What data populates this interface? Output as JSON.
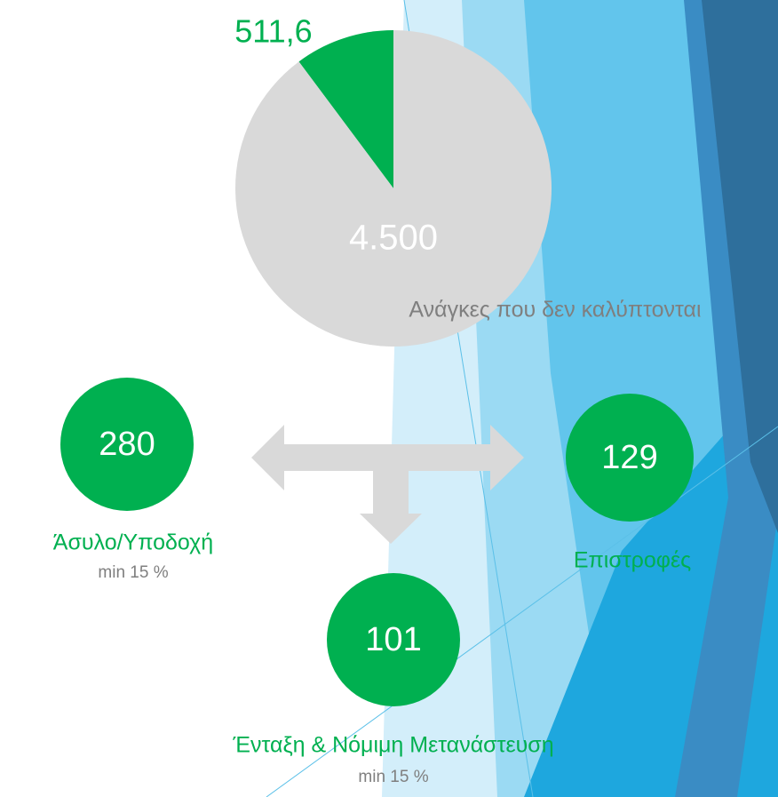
{
  "chart_data": {
    "type": "pie",
    "categories": [
      null,
      "Ανάγκες που δεν καλύπτονται"
    ],
    "values": [
      511.6,
      4500
    ],
    "value_labels": [
      "511,6",
      "4.500"
    ],
    "colors": [
      "#00b050",
      "#d9d9d9"
    ]
  },
  "allocations": [
    {
      "value": 280,
      "label": "Άσυλο/Υποδοχή",
      "note": "min 15 %"
    },
    {
      "value": 129,
      "label": "Επιστροφές"
    },
    {
      "value": 101,
      "label": "Ένταξη & Νόμιμη Μετανάστευση",
      "note": "min 15 %"
    }
  ]
}
